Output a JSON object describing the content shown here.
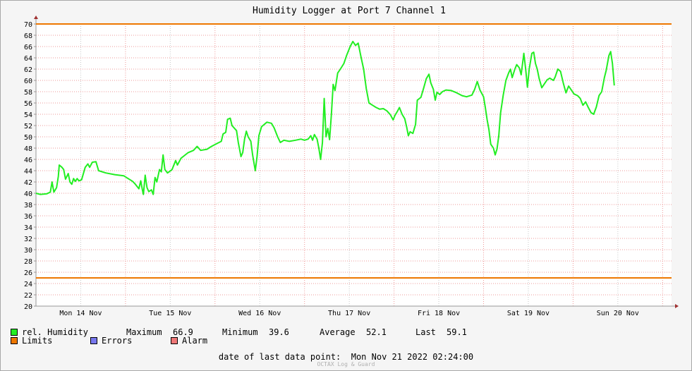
{
  "chart_data": {
    "type": "line",
    "title": "Humidity Logger at Port 7 Channel 1",
    "ylim": [
      20,
      70
    ],
    "yticks": [
      20,
      22,
      24,
      26,
      28,
      30,
      32,
      34,
      36,
      38,
      40,
      42,
      44,
      46,
      48,
      50,
      52,
      54,
      56,
      58,
      60,
      62,
      64,
      66,
      68,
      70
    ],
    "xlim": [
      0,
      7.1
    ],
    "xticks": [
      {
        "x": 0.5,
        "label": "Mon 14 Nov"
      },
      {
        "x": 1.5,
        "label": "Tue 15 Nov"
      },
      {
        "x": 2.5,
        "label": "Wed 16 Nov"
      },
      {
        "x": 3.5,
        "label": "Thu 17 Nov"
      },
      {
        "x": 4.5,
        "label": "Fri 18 Nov"
      },
      {
        "x": 5.5,
        "label": "Sat 19 Nov"
      },
      {
        "x": 6.5,
        "label": "Sun 20 Nov"
      }
    ],
    "limits": [
      70,
      25
    ],
    "series": [
      {
        "name": "rel. Humidity",
        "color": "#22ee22",
        "points": [
          [
            0.0,
            40.0
          ],
          [
            0.05,
            39.8
          ],
          [
            0.12,
            39.9
          ],
          [
            0.16,
            40.2
          ],
          [
            0.18,
            42.0
          ],
          [
            0.2,
            40.2
          ],
          [
            0.23,
            41.0
          ],
          [
            0.25,
            43.0
          ],
          [
            0.26,
            45.0
          ],
          [
            0.29,
            44.6
          ],
          [
            0.31,
            44.2
          ],
          [
            0.33,
            42.5
          ],
          [
            0.36,
            43.5
          ],
          [
            0.38,
            42.0
          ],
          [
            0.4,
            41.6
          ],
          [
            0.42,
            42.6
          ],
          [
            0.44,
            42.1
          ],
          [
            0.46,
            42.6
          ],
          [
            0.48,
            42.2
          ],
          [
            0.51,
            42.4
          ],
          [
            0.55,
            44.6
          ],
          [
            0.58,
            45.2
          ],
          [
            0.6,
            44.6
          ],
          [
            0.63,
            45.5
          ],
          [
            0.67,
            45.6
          ],
          [
            0.7,
            44.0
          ],
          [
            0.78,
            43.6
          ],
          [
            0.88,
            43.3
          ],
          [
            0.98,
            43.1
          ],
          [
            1.03,
            42.6
          ],
          [
            1.08,
            42.1
          ],
          [
            1.11,
            41.6
          ],
          [
            1.15,
            40.8
          ],
          [
            1.17,
            42.2
          ],
          [
            1.19,
            40.5
          ],
          [
            1.2,
            39.8
          ],
          [
            1.22,
            43.2
          ],
          [
            1.24,
            41.0
          ],
          [
            1.26,
            40.3
          ],
          [
            1.29,
            40.6
          ],
          [
            1.31,
            39.8
          ],
          [
            1.33,
            42.8
          ],
          [
            1.35,
            42.0
          ],
          [
            1.38,
            44.2
          ],
          [
            1.4,
            43.8
          ],
          [
            1.42,
            46.8
          ],
          [
            1.44,
            44.2
          ],
          [
            1.47,
            43.6
          ],
          [
            1.52,
            44.2
          ],
          [
            1.56,
            45.8
          ],
          [
            1.58,
            45.0
          ],
          [
            1.62,
            46.2
          ],
          [
            1.7,
            47.2
          ],
          [
            1.76,
            47.6
          ],
          [
            1.8,
            48.3
          ],
          [
            1.84,
            47.6
          ],
          [
            1.91,
            47.8
          ],
          [
            1.96,
            48.3
          ],
          [
            2.02,
            48.8
          ],
          [
            2.07,
            49.2
          ],
          [
            2.09,
            50.5
          ],
          [
            2.12,
            50.8
          ],
          [
            2.14,
            53.1
          ],
          [
            2.17,
            53.3
          ],
          [
            2.19,
            52.0
          ],
          [
            2.24,
            51.1
          ],
          [
            2.26,
            49.0
          ],
          [
            2.29,
            46.5
          ],
          [
            2.31,
            47.2
          ],
          [
            2.33,
            49.6
          ],
          [
            2.35,
            51.0
          ],
          [
            2.37,
            50.0
          ],
          [
            2.4,
            49.2
          ],
          [
            2.42,
            46.8
          ],
          [
            2.45,
            44.0
          ],
          [
            2.47,
            46.5
          ],
          [
            2.49,
            50.2
          ],
          [
            2.52,
            51.8
          ],
          [
            2.58,
            52.6
          ],
          [
            2.63,
            52.4
          ],
          [
            2.66,
            51.6
          ],
          [
            2.7,
            50.0
          ],
          [
            2.73,
            49.0
          ],
          [
            2.77,
            49.4
          ],
          [
            2.83,
            49.2
          ],
          [
            2.9,
            49.4
          ],
          [
            2.96,
            49.6
          ],
          [
            3.0,
            49.4
          ],
          [
            3.04,
            49.6
          ],
          [
            3.07,
            50.2
          ],
          [
            3.09,
            49.4
          ],
          [
            3.11,
            50.4
          ],
          [
            3.14,
            49.6
          ],
          [
            3.16,
            48.0
          ],
          [
            3.18,
            46.0
          ],
          [
            3.2,
            49.0
          ],
          [
            3.22,
            56.8
          ],
          [
            3.24,
            50.0
          ],
          [
            3.26,
            51.5
          ],
          [
            3.28,
            49.5
          ],
          [
            3.3,
            54.0
          ],
          [
            3.32,
            59.3
          ],
          [
            3.34,
            58.2
          ],
          [
            3.37,
            61.3
          ],
          [
            3.4,
            62.0
          ],
          [
            3.44,
            63.0
          ],
          [
            3.47,
            64.4
          ],
          [
            3.51,
            66.0
          ],
          [
            3.54,
            66.9
          ],
          [
            3.57,
            66.2
          ],
          [
            3.6,
            66.6
          ],
          [
            3.63,
            64.2
          ],
          [
            3.66,
            62.0
          ],
          [
            3.69,
            58.5
          ],
          [
            3.72,
            56.0
          ],
          [
            3.76,
            55.6
          ],
          [
            3.8,
            55.2
          ],
          [
            3.84,
            54.9
          ],
          [
            3.88,
            55.0
          ],
          [
            3.92,
            54.6
          ],
          [
            3.96,
            53.9
          ],
          [
            3.99,
            53.0
          ],
          [
            4.01,
            53.8
          ],
          [
            4.04,
            54.6
          ],
          [
            4.06,
            55.2
          ],
          [
            4.09,
            54.0
          ],
          [
            4.12,
            53.2
          ],
          [
            4.14,
            51.8
          ],
          [
            4.16,
            50.2
          ],
          [
            4.18,
            50.9
          ],
          [
            4.21,
            50.6
          ],
          [
            4.24,
            52.2
          ],
          [
            4.26,
            56.5
          ],
          [
            4.3,
            57.0
          ],
          [
            4.33,
            58.6
          ],
          [
            4.36,
            60.3
          ],
          [
            4.39,
            61.1
          ],
          [
            4.41,
            59.6
          ],
          [
            4.44,
            58.4
          ],
          [
            4.46,
            56.5
          ],
          [
            4.48,
            57.9
          ],
          [
            4.51,
            57.5
          ],
          [
            4.54,
            58.0
          ],
          [
            4.58,
            58.3
          ],
          [
            4.64,
            58.2
          ],
          [
            4.7,
            57.8
          ],
          [
            4.76,
            57.3
          ],
          [
            4.81,
            57.1
          ],
          [
            4.87,
            57.4
          ],
          [
            4.9,
            58.4
          ],
          [
            4.93,
            59.8
          ],
          [
            4.96,
            58.3
          ],
          [
            5.0,
            57.1
          ],
          [
            5.02,
            55.2
          ],
          [
            5.04,
            53.0
          ],
          [
            5.06,
            51.3
          ],
          [
            5.08,
            48.7
          ],
          [
            5.11,
            48.0
          ],
          [
            5.13,
            46.8
          ],
          [
            5.15,
            47.8
          ],
          [
            5.17,
            50.2
          ],
          [
            5.19,
            54.2
          ],
          [
            5.22,
            57.4
          ],
          [
            5.25,
            60.0
          ],
          [
            5.28,
            61.3
          ],
          [
            5.3,
            62.0
          ],
          [
            5.32,
            60.5
          ],
          [
            5.35,
            62.0
          ],
          [
            5.37,
            62.8
          ],
          [
            5.4,
            62.2
          ],
          [
            5.42,
            61.0
          ],
          [
            5.45,
            64.8
          ],
          [
            5.47,
            62.0
          ],
          [
            5.49,
            58.8
          ],
          [
            5.51,
            62.0
          ],
          [
            5.54,
            64.8
          ],
          [
            5.56,
            65.0
          ],
          [
            5.58,
            63.0
          ],
          [
            5.6,
            62.0
          ],
          [
            5.62,
            60.4
          ],
          [
            5.65,
            58.7
          ],
          [
            5.68,
            59.4
          ],
          [
            5.71,
            60.1
          ],
          [
            5.74,
            60.4
          ],
          [
            5.78,
            60.0
          ],
          [
            5.8,
            60.6
          ],
          [
            5.83,
            62.0
          ],
          [
            5.86,
            61.6
          ],
          [
            5.89,
            59.6
          ],
          [
            5.92,
            57.8
          ],
          [
            5.95,
            59.0
          ],
          [
            5.98,
            58.3
          ],
          [
            6.01,
            57.6
          ],
          [
            6.05,
            57.3
          ],
          [
            6.08,
            56.8
          ],
          [
            6.11,
            55.6
          ],
          [
            6.14,
            56.2
          ],
          [
            6.17,
            55.2
          ],
          [
            6.2,
            54.3
          ],
          [
            6.23,
            54.0
          ],
          [
            6.26,
            55.3
          ],
          [
            6.29,
            57.3
          ],
          [
            6.32,
            58.0
          ],
          [
            6.35,
            60.5
          ],
          [
            6.37,
            61.8
          ],
          [
            6.4,
            64.4
          ],
          [
            6.42,
            65.1
          ],
          [
            6.44,
            63.0
          ],
          [
            6.46,
            59.1
          ]
        ]
      }
    ]
  },
  "legend": {
    "humidity_label": "rel. Humidity",
    "humidity_color": "#22ee22",
    "max_label": "Maximum",
    "max_value": "66.9",
    "min_label": "Minimum",
    "min_value": "39.6",
    "avg_label": "Average",
    "avg_value": "52.1",
    "last_label": "Last",
    "last_value": "59.1",
    "limits_label": "Limits",
    "limits_color": "#ee7700",
    "errors_label": "Errors",
    "errors_color": "#7777ee",
    "alarm_label": "Alarm",
    "alarm_color": "#ee7777"
  },
  "footer": {
    "last_point_text": "date of last data point:  Mon Nov 21 2022 02:24:00",
    "watermark": "OCTAX Log & Guard"
  }
}
